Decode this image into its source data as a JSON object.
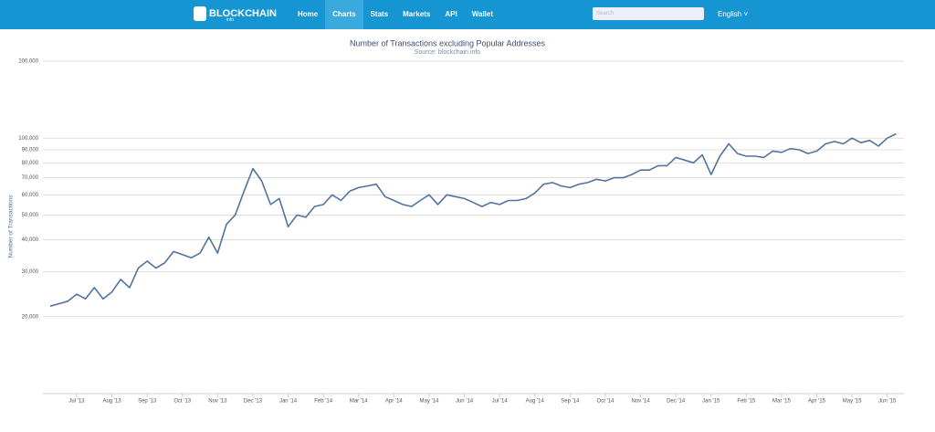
{
  "nav": {
    "logo": "BLOCKCHAIN",
    "logo_sub": "info",
    "links": [
      "Home",
      "Charts",
      "Stats",
      "Markets",
      "API",
      "Wallet"
    ],
    "active": 1,
    "search_placeholder": "Search",
    "language": "English"
  },
  "chart_data": {
    "type": "line",
    "title": "Number of Transactions excluding Popular Addresses",
    "subtitle": "Source: blockchain.info",
    "y_label": "Number of Transactions",
    "log_scale": true,
    "grid": true,
    "categories": [
      null,
      null,
      null,
      "Jul '13",
      null,
      null,
      null,
      "Aug '13",
      null,
      null,
      null,
      "Sep '13",
      null,
      null,
      null,
      "Oct '13",
      null,
      null,
      null,
      "Nov '13",
      null,
      null,
      null,
      "Dec '13",
      null,
      null,
      null,
      "Jan '14",
      null,
      null,
      null,
      "Feb '14",
      null,
      null,
      null,
      "Mar '14",
      null,
      null,
      null,
      "Apr '14",
      null,
      null,
      null,
      "May '14",
      null,
      null,
      null,
      "Jun '14",
      null,
      null,
      null,
      "Jul '14",
      null,
      null,
      null,
      "Aug '14",
      null,
      null,
      null,
      "Sep '14",
      null,
      null,
      null,
      "Oct '14",
      null,
      null,
      null,
      "Nov '14",
      null,
      null,
      null,
      "Dec '14",
      null,
      null,
      null,
      "Jan '15",
      null,
      null,
      null,
      "Feb '15",
      null,
      null,
      null,
      "Mar '15",
      null,
      null,
      null,
      "Apr '15",
      null,
      null,
      null,
      "May '15",
      null,
      null,
      null,
      "Jun '15",
      null
    ],
    "series": [
      {
        "name": "Number of Transactions",
        "color": "#52739f",
        "values": [
          22000,
          22500,
          23000,
          24500,
          23500,
          26000,
          23500,
          25000,
          28000,
          26000,
          31000,
          33000,
          31000,
          32500,
          36000,
          35000,
          34000,
          35500,
          41000,
          35500,
          46000,
          50000,
          62000,
          76000,
          68000,
          55000,
          58000,
          45000,
          50000,
          49000,
          54000,
          55000,
          60000,
          57000,
          62000,
          64000,
          65000,
          66000,
          59000,
          57000,
          55000,
          54000,
          57000,
          60000,
          55000,
          60000,
          59000,
          58000,
          56000,
          54000,
          56000,
          55000,
          57000,
          57000,
          58000,
          61000,
          66000,
          67000,
          65000,
          64000,
          66000,
          67000,
          69000,
          68000,
          70000,
          70000,
          72000,
          75000,
          75000,
          78000,
          78000,
          84000,
          82000,
          80000,
          86000,
          72000,
          85000,
          95000,
          87000,
          85000,
          85000,
          84000,
          89000,
          88000,
          91000,
          90000,
          87000,
          89000,
          95000,
          97000,
          95000,
          100000,
          96000,
          98000,
          93000,
          100000,
          104000
        ]
      }
    ],
    "ylim": [
      10000,
      200000
    ],
    "yticks": [
      {
        "value": 20000,
        "label": "20,000"
      },
      {
        "value": 30000,
        "label": "30,000"
      },
      {
        "value": 40000,
        "label": "40,000"
      },
      {
        "value": 50000,
        "label": "50,000"
      },
      {
        "value": 60000,
        "label": "60,000"
      },
      {
        "value": 70000,
        "label": "70,000"
      },
      {
        "value": 80000,
        "label": "80,000"
      },
      {
        "value": 90000,
        "label": "90,000"
      },
      {
        "value": 100000,
        "label": "100,000"
      },
      {
        "value": 200000,
        "label": "200,000"
      }
    ]
  }
}
